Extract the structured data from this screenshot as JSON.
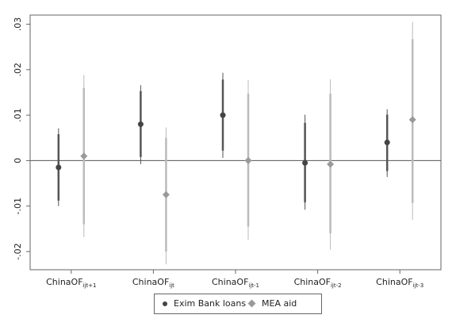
{
  "chart_data": {
    "type": "scatter",
    "title": "",
    "xlabel": "",
    "ylabel": "",
    "ylim": [
      -0.024,
      0.032
    ],
    "yticks": [
      -0.02,
      -0.01,
      0,
      0.01,
      0.02,
      0.03
    ],
    "ytick_labels": [
      "-.02",
      "-.01",
      "0",
      ".01",
      ".02",
      ".03"
    ],
    "reference_line_y": 0,
    "categories": [
      {
        "base": "ChinaOF",
        "sub": "ijt+1"
      },
      {
        "base": "ChinaOF",
        "sub": "ijt"
      },
      {
        "base": "ChinaOF",
        "sub": "ijt-1"
      },
      {
        "base": "ChinaOF",
        "sub": "ijt-2"
      },
      {
        "base": "ChinaOF",
        "sub": "ijt-3"
      }
    ],
    "series": [
      {
        "name": "Exim Bank loans",
        "marker": "circle",
        "color": "#444444",
        "ci_color": "#555555",
        "values": [
          -0.0015,
          0.008,
          0.01,
          -0.0005,
          0.004
        ],
        "ci90": [
          [
            -0.0088,
            0.0058
          ],
          [
            0.0008,
            0.0153
          ],
          [
            0.0022,
            0.0178
          ],
          [
            -0.0092,
            0.0083
          ],
          [
            -0.0023,
            0.0101
          ]
        ],
        "ci95": [
          [
            -0.01,
            0.0071
          ],
          [
            -0.0008,
            0.0166
          ],
          [
            0.0006,
            0.0193
          ],
          [
            -0.0108,
            0.0101
          ],
          [
            -0.0036,
            0.0113
          ]
        ]
      },
      {
        "name": "MEA aid",
        "marker": "diamond",
        "color": "#999999",
        "ci_color": "#bbbbbb",
        "values": [
          0.001,
          -0.0075,
          0.0,
          -0.0008,
          0.009
        ],
        "ci90": [
          [
            -0.014,
            0.016
          ],
          [
            -0.02,
            0.005
          ],
          [
            -0.0145,
            0.0147
          ],
          [
            -0.016,
            0.0147
          ],
          [
            -0.0093,
            0.0267
          ]
        ],
        "ci95": [
          [
            -0.0168,
            0.0188
          ],
          [
            -0.0228,
            0.0073
          ],
          [
            -0.0174,
            0.0177
          ],
          [
            -0.0196,
            0.0179
          ],
          [
            -0.013,
            0.0305
          ]
        ]
      }
    ],
    "legend_position": "bottom-center",
    "grid": false
  }
}
